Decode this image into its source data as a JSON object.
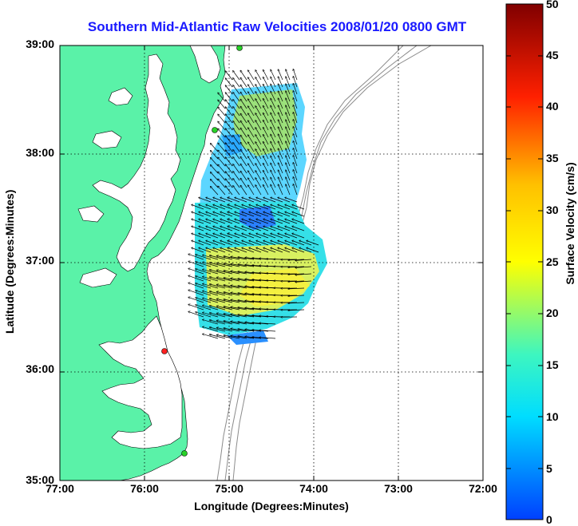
{
  "title": "Southern Mid-Atlantic Raw Velocities 2008/01/20 0800 GMT",
  "xlabel": "Longitude (Degrees:Minutes)",
  "ylabel": "Latitude (Degrees:Minutes)",
  "colorbar_label": "Surface Velocity (cm/s)",
  "x_ticks": [
    "77:00",
    "76:00",
    "75:00",
    "74:00",
    "73:00",
    "72:00"
  ],
  "y_ticks": [
    "39:00",
    "38:00",
    "37:00",
    "36:00",
    "35:00"
  ],
  "colorbar_ticks": [
    "0",
    "5",
    "10",
    "15",
    "20",
    "25",
    "30",
    "35",
    "40",
    "45",
    "50"
  ],
  "colors": {
    "land": "#5af2a8",
    "title": "#1a1aff",
    "coast": "#000000",
    "bathymetry": "#8c8c8c"
  },
  "chart_data": {
    "type": "map",
    "xlim": [
      -77,
      -72
    ],
    "ylim": [
      35,
      39
    ],
    "colorbar_range": [
      0,
      50
    ],
    "grid": true,
    "legend": "colorbar-right"
  }
}
